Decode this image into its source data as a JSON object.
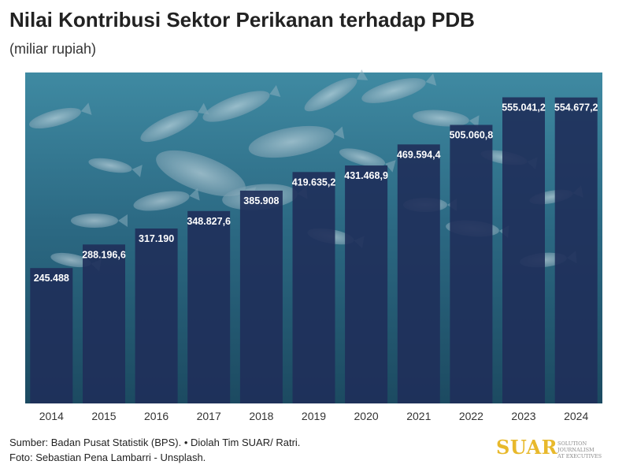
{
  "header": {
    "title": "Nilai Kontribusi Sektor Perikanan terhadap PDB",
    "subtitle": "(miliar rupiah)"
  },
  "footer": {
    "source_line": "Sumber: Badan Pusat Statistik (BPS). • Diolah Tim SUAR/ Ratri.",
    "photo_line": "Foto: Sebastian Pena Lambarri - Unsplash."
  },
  "logo": {
    "word": "SUAR",
    "tagline_1": "SOLUTION JOURNALISM",
    "tagline_2": "AT EXECUTIVES"
  },
  "colors": {
    "bar": "#1f2f5a",
    "background_water": "#2e6f86",
    "label": "#ffffff"
  },
  "chart_data": {
    "type": "bar",
    "title": "Nilai Kontribusi Sektor Perikanan terhadap PDB",
    "subtitle": "(miliar rupiah)",
    "xlabel": "",
    "ylabel": "",
    "categories": [
      "2014",
      "2015",
      "2016",
      "2017",
      "2018",
      "2019",
      "2020",
      "2021",
      "2022",
      "2023",
      "2024"
    ],
    "values": [
      245488,
      288196.6,
      317190,
      348827.6,
      385908,
      419635.2,
      431468.9,
      469594.4,
      505060.8,
      555041.2,
      554677.2
    ],
    "value_labels": [
      "245.488",
      "288.196,6",
      "317.190",
      "348.827,6",
      "385.908",
      "419.635,2",
      "431.468,9",
      "469.594,4",
      "505.060,8",
      "555.041,2",
      "554.677,2"
    ],
    "ylim": [
      0,
      600000
    ],
    "grid": false,
    "legend": "none"
  }
}
